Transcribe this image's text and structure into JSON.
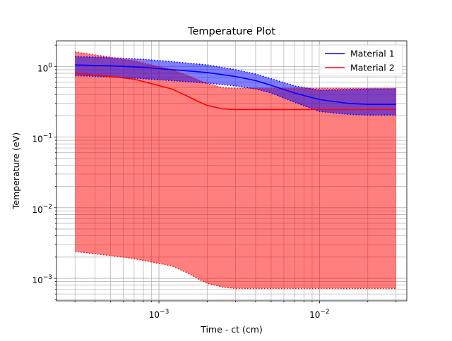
{
  "chart_data": {
    "type": "line",
    "title": "Temperature Plot",
    "xlabel": "Time - ct (cm)",
    "ylabel": "Temperature (eV)",
    "xscale": "log",
    "yscale": "log",
    "xlim": [
      0.00023,
      0.035
    ],
    "ylim": [
      0.00048,
      2.3
    ],
    "grid": true,
    "legend": "top-right",
    "x_major_ticks": [
      {
        "value": 0.001,
        "base": "10",
        "exp": "−3"
      },
      {
        "value": 0.01,
        "base": "10",
        "exp": "−2"
      }
    ],
    "y_major_ticks": [
      {
        "value": 0.001,
        "base": "10",
        "exp": "−3"
      },
      {
        "value": 0.01,
        "base": "10",
        "exp": "−2"
      },
      {
        "value": 0.1,
        "base": "10",
        "exp": "−1"
      },
      {
        "value": 1,
        "base": "10",
        "exp": "0"
      }
    ],
    "series": [
      {
        "name": "Material 1",
        "color": "#0000ff",
        "x": [
          0.0003,
          0.0005,
          0.0008,
          0.0012,
          0.002,
          0.003,
          0.004,
          0.005,
          0.007,
          0.01,
          0.015,
          0.02,
          0.03
        ],
        "y": [
          1.05,
          1.02,
          0.97,
          0.9,
          0.82,
          0.72,
          0.63,
          0.54,
          0.42,
          0.34,
          0.3,
          0.29,
          0.29
        ],
        "upper": [
          1.38,
          1.33,
          1.26,
          1.17,
          1.05,
          0.9,
          0.78,
          0.67,
          0.53,
          0.46,
          0.47,
          0.48,
          0.48
        ],
        "lower": [
          0.74,
          0.71,
          0.67,
          0.63,
          0.58,
          0.53,
          0.48,
          0.42,
          0.31,
          0.23,
          0.21,
          0.205,
          0.205
        ]
      },
      {
        "name": "Material 2",
        "color": "#ff0000",
        "x": [
          0.0003,
          0.0005,
          0.0007,
          0.0009,
          0.0012,
          0.0015,
          0.0018,
          0.002,
          0.0025,
          0.003,
          0.005,
          0.01,
          0.02,
          0.03
        ],
        "y": [
          0.8,
          0.72,
          0.66,
          0.57,
          0.48,
          0.38,
          0.31,
          0.28,
          0.25,
          0.245,
          0.245,
          0.245,
          0.245,
          0.245
        ],
        "upper": [
          1.6,
          1.35,
          1.2,
          1.05,
          0.9,
          0.75,
          0.63,
          0.57,
          0.5,
          0.49,
          0.49,
          0.49,
          0.49,
          0.49
        ],
        "lower": [
          0.0024,
          0.0021,
          0.0019,
          0.0017,
          0.0015,
          0.0012,
          0.00095,
          0.00085,
          0.00075,
          0.00072,
          0.00072,
          0.00072,
          0.00072,
          0.00072
        ]
      }
    ]
  }
}
